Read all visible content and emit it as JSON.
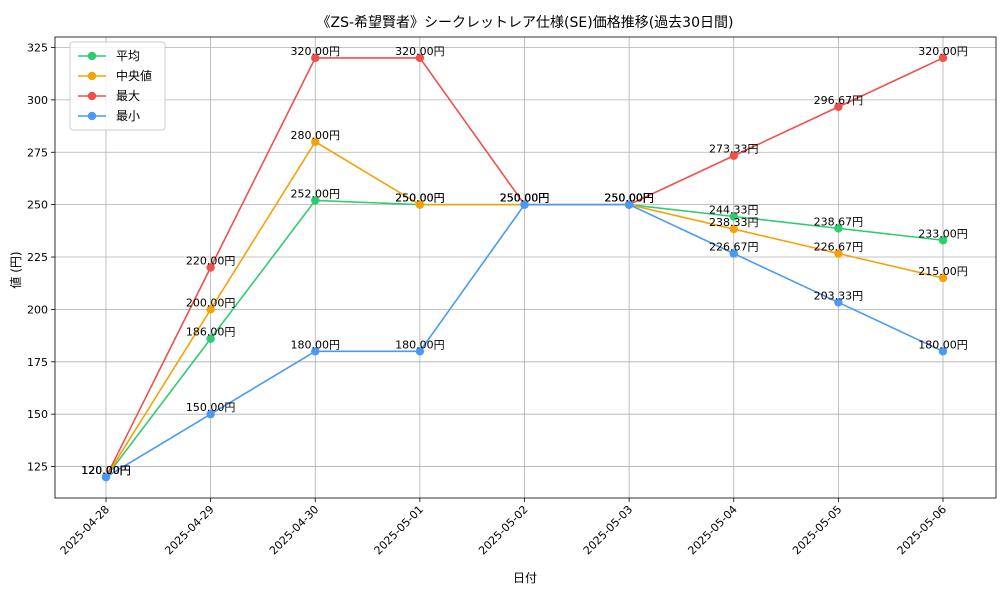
{
  "chart_data": {
    "type": "line",
    "title": "《ZS-希望賢者》シークレットレア仕様(SE)価格推移(過去30日間)",
    "xlabel": "日付",
    "ylabel": "値 (円)",
    "categories": [
      "2025-04-28",
      "2025-04-29",
      "2025-04-30",
      "2025-05-01",
      "2025-05-02",
      "2025-05-03",
      "2025-05-04",
      "2025-05-05",
      "2025-05-06"
    ],
    "ylim": [
      110,
      330
    ],
    "yticks": [
      125,
      150,
      175,
      200,
      225,
      250,
      275,
      300,
      325
    ],
    "grid": true,
    "legend_position": "top-left",
    "series": [
      {
        "name": "平均",
        "color": "#2ecc71",
        "values": [
          120,
          186,
          252,
          250,
          250,
          250,
          244.33,
          238.67,
          233
        ],
        "labels": [
          "120.00円",
          "186.00円",
          "252.00円",
          "250.00円",
          "250.00円",
          "250.00円",
          "244.33円",
          "238.67円",
          "233.00円"
        ]
      },
      {
        "name": "中央値",
        "color": "#f5a20a",
        "values": [
          120,
          200,
          280,
          250,
          250,
          250,
          238.33,
          226.67,
          215
        ],
        "labels": [
          "120.00円",
          "200.00円",
          "280.00円",
          "250.00円",
          "250.00円",
          "250.00円",
          "238.33円",
          "226.67円",
          "215.00円"
        ]
      },
      {
        "name": "最大",
        "color": "#f0504a",
        "values": [
          120,
          220,
          320,
          320,
          250,
          250,
          273.33,
          296.67,
          320
        ],
        "labels": [
          "120.00円",
          "220.00円",
          "320.00円",
          "320.00円",
          "250.00円",
          "250.00円",
          "273.33円",
          "296.67円",
          "320.00円"
        ]
      },
      {
        "name": "最小",
        "color": "#4a9af5",
        "values": [
          120,
          150,
          180,
          180,
          250,
          250,
          226.67,
          203.33,
          180
        ],
        "labels": [
          "120.00円",
          "150.00円",
          "180.00円",
          "180.00円",
          "250.00円",
          "250.00円",
          "226.67円",
          "203.33円",
          "180.00円"
        ]
      }
    ]
  }
}
